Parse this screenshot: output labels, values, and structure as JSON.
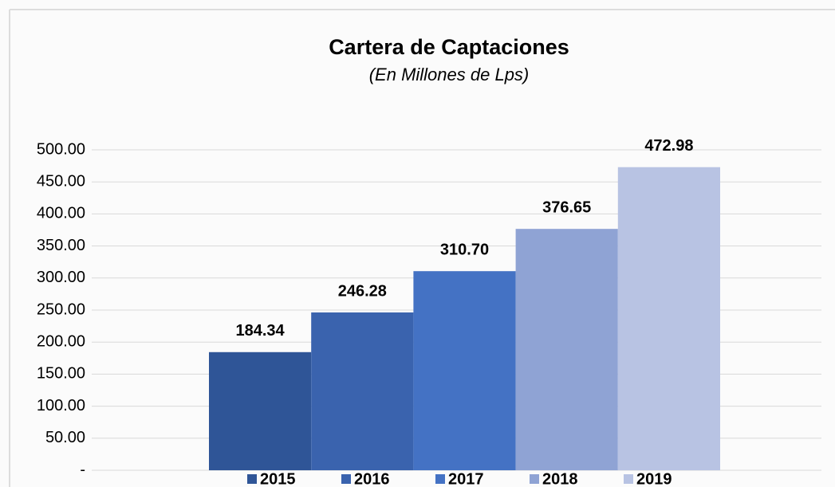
{
  "chart_data": {
    "type": "bar",
    "title": "Cartera de Captaciones",
    "subtitle": "(En Millones de Lps)",
    "series": [
      {
        "name": "2015",
        "color": "#2f5597",
        "values": [
          184.34
        ],
        "value_labels": [
          "184.34"
        ]
      },
      {
        "name": "2016",
        "color": "#3a63ae",
        "values": [
          246.28
        ],
        "value_labels": [
          "246.28"
        ]
      },
      {
        "name": "2017",
        "color": "#4472c4",
        "values": [
          310.7
        ],
        "value_labels": [
          "310.70"
        ]
      },
      {
        "name": "2018",
        "color": "#8fa3d4",
        "values": [
          376.65
        ],
        "value_labels": [
          "376.65"
        ]
      },
      {
        "name": "2019",
        "color": "#b8c3e3",
        "values": [
          472.98
        ],
        "value_labels": [
          "472.98"
        ]
      }
    ],
    "ylim": [
      0,
      500
    ],
    "yticks": [
      {
        "value": 0,
        "label": "-"
      },
      {
        "value": 50,
        "label": "50.00"
      },
      {
        "value": 100,
        "label": "100.00"
      },
      {
        "value": 150,
        "label": "150.00"
      },
      {
        "value": 200,
        "label": "200.00"
      },
      {
        "value": 250,
        "label": "250.00"
      },
      {
        "value": 300,
        "label": "300.00"
      },
      {
        "value": 350,
        "label": "350.00"
      },
      {
        "value": 400,
        "label": "400.00"
      },
      {
        "value": 450,
        "label": "450.00"
      },
      {
        "value": 500,
        "label": "500.00"
      }
    ],
    "grid": true
  }
}
